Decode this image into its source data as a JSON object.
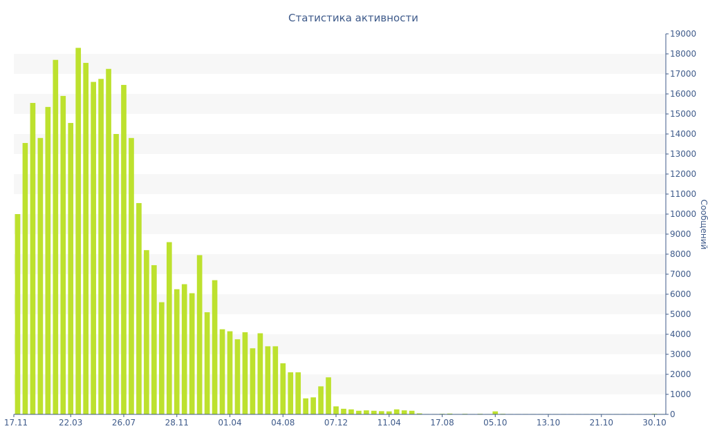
{
  "chart_data": {
    "type": "bar",
    "title": "Статистика активности",
    "xlabel": "",
    "ylabel": "Сообщений",
    "ylim": [
      0,
      19000
    ],
    "y_ticks": [
      0,
      1000,
      2000,
      3000,
      4000,
      5000,
      6000,
      7000,
      8000,
      9000,
      10000,
      11000,
      12000,
      13000,
      14000,
      15000,
      16000,
      17000,
      18000,
      19000
    ],
    "y_axis_side": "right",
    "grid": "alternating horizontal bands",
    "x_tick_labels": [
      {
        "index": 0,
        "label": "17.11"
      },
      {
        "index": 7,
        "label": "22.03"
      },
      {
        "index": 14,
        "label": "26.07"
      },
      {
        "index": 21,
        "label": "28.11"
      },
      {
        "index": 28,
        "label": "01.04"
      },
      {
        "index": 35,
        "label": "04.08"
      },
      {
        "index": 42,
        "label": "07.12"
      },
      {
        "index": 49,
        "label": "11.04"
      },
      {
        "index": 56,
        "label": "17.08"
      },
      {
        "index": 63,
        "label": "05.10"
      },
      {
        "index": 70,
        "label": "13.10"
      },
      {
        "index": 77,
        "label": "21.10"
      },
      {
        "index": 84,
        "label": "30.10"
      }
    ],
    "values": [
      10000,
      13550,
      15550,
      13800,
      15350,
      17700,
      15900,
      14550,
      18300,
      17550,
      16600,
      16750,
      17250,
      14000,
      16450,
      13800,
      10550,
      8200,
      7450,
      5600,
      8600,
      6250,
      6500,
      6050,
      7950,
      5100,
      6700,
      4250,
      4150,
      3750,
      4100,
      3300,
      4050,
      3400,
      3400,
      2550,
      2100,
      2100,
      800,
      850,
      1400,
      1850,
      400,
      280,
      250,
      180,
      200,
      180,
      160,
      150,
      250,
      200,
      180,
      50,
      20,
      20,
      30,
      40,
      20,
      30,
      20,
      30,
      20,
      150,
      30,
      20,
      20,
      20,
      20,
      20,
      20,
      20,
      20,
      20,
      20,
      20,
      20,
      20,
      20,
      20,
      20,
      20,
      20,
      20,
      30,
      20
    ],
    "bar_color": "#bde12e"
  }
}
